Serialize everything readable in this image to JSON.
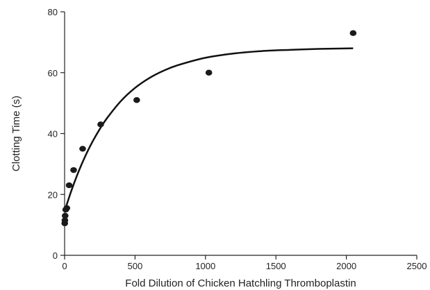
{
  "chart_data": {
    "type": "scatter",
    "xlabel": "Fold Dilution of Chicken Hatchling Thromboplastin",
    "ylabel": "Clotting Time (s)",
    "xlim": [
      0,
      2500
    ],
    "ylim": [
      0,
      80
    ],
    "xticks": [
      0,
      500,
      1000,
      1500,
      2000,
      2500
    ],
    "yticks": [
      0,
      20,
      40,
      60,
      80
    ],
    "grid": false,
    "series": [
      {
        "kind": "points",
        "x": [
          1,
          2,
          4,
          8,
          16,
          32,
          64,
          128,
          256,
          512,
          1024,
          2048
        ],
        "y": [
          10.5,
          11.5,
          13,
          15,
          15.5,
          23,
          28,
          35,
          43,
          51,
          60,
          73
        ]
      },
      {
        "kind": "fit-curve",
        "x": [
          0,
          50,
          100,
          150,
          200,
          250,
          300,
          400,
          500,
          600,
          700,
          800,
          1000,
          1200,
          1400,
          1600,
          1800,
          2048
        ],
        "y": [
          14.5,
          21.5,
          27.6,
          32.9,
          37.5,
          41.5,
          45.0,
          50.7,
          55.0,
          58.2,
          60.6,
          62.4,
          64.9,
          66.3,
          67.1,
          67.5,
          67.8,
          68.0
        ]
      }
    ]
  }
}
